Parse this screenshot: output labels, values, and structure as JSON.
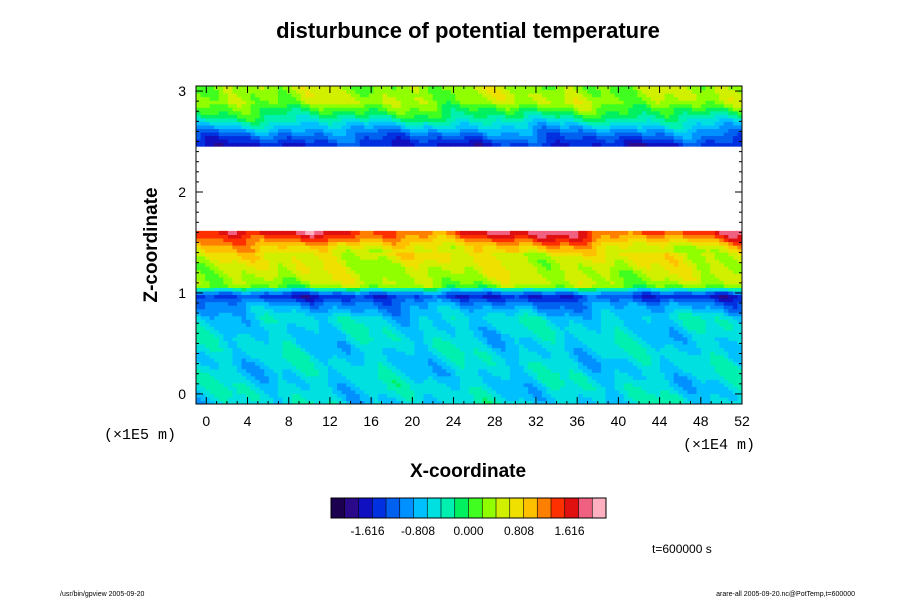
{
  "chart_data": {
    "type": "heatmap",
    "title": "disturbunce of potential temperature",
    "xlabel": "X-coordinate",
    "ylabel": "Z-coordinate",
    "x_unit_label": "(×1E4 m)",
    "y_unit_label": "(×1E5 m)",
    "x_range": [
      -1,
      52
    ],
    "y_range": [
      -0.1,
      3.05
    ],
    "x_ticks": [
      0,
      4,
      8,
      12,
      16,
      20,
      24,
      28,
      32,
      36,
      40,
      44,
      48,
      52
    ],
    "y_ticks": [
      0,
      1,
      2,
      3
    ],
    "colorbar": {
      "min": -2.2,
      "max": 2.2,
      "tick_values": [
        -1.616,
        -0.808,
        0.0,
        0.808,
        1.616
      ],
      "tick_labels": [
        "-1.616",
        "-0.808",
        "0.000",
        "0.808",
        "1.616"
      ],
      "colors": [
        "#1c0050",
        "#2a0a8a",
        "#1010c0",
        "#0030e0",
        "#0060f0",
        "#0090ff",
        "#00c0ff",
        "#00e0e0",
        "#00f0b0",
        "#00f060",
        "#40ff20",
        "#90ff00",
        "#d0f000",
        "#f0e000",
        "#ffc000",
        "#ff8000",
        "#ff3000",
        "#e01010",
        "#f06080",
        "#ffb0c0"
      ]
    },
    "field_profile": [
      {
        "z": -0.1,
        "value": -0.58
      },
      {
        "z": 0.3,
        "value": -0.62
      },
      {
        "z": 0.75,
        "value": -0.6
      },
      {
        "z": 0.9,
        "value": -1.05
      },
      {
        "z": 0.98,
        "value": -1.5
      },
      {
        "z": 1.08,
        "value": 0.4
      },
      {
        "z": 1.3,
        "value": 0.55
      },
      {
        "z": 1.45,
        "value": 0.75
      },
      {
        "z": 1.55,
        "value": 1.3
      },
      {
        "z": 1.62,
        "value": 1.65
      },
      {
        "z": 1.65,
        "value": null
      },
      {
        "z": 2.35,
        "value": null
      },
      {
        "z": 2.45,
        "value": -1.6
      },
      {
        "z": 2.6,
        "value": -1.0
      },
      {
        "z": 2.75,
        "value": -0.2
      },
      {
        "z": 2.9,
        "value": 0.4
      },
      {
        "z": 3.05,
        "value": 0.35
      }
    ],
    "time_label": "t=600000 s",
    "footer_left": "/usr/bin/gpview 2005-09-20",
    "footer_right": "arare-all 2005-09-20.nc@PotTemp,t=600000"
  }
}
